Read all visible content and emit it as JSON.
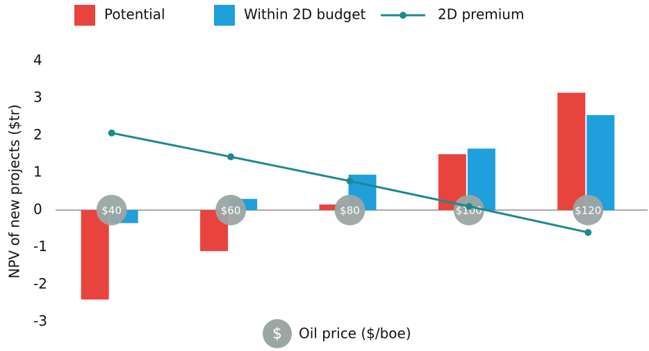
{
  "chart_data": {
    "type": "bar",
    "y_label": "NPV of new projects ($tr)",
    "x_label": "Oil price ($/boe)",
    "x_label_icon": "$",
    "categories": [
      "$40",
      "$60",
      "$80",
      "$100",
      "$120"
    ],
    "series": [
      {
        "name": "Potential",
        "color": "#e8433d",
        "values": [
          -2.4,
          -1.1,
          0.15,
          1.5,
          3.15
        ]
      },
      {
        "name": "Within 2D budget",
        "color": "#1f9fdb",
        "values": [
          -0.35,
          0.3,
          0.95,
          1.65,
          2.55
        ]
      },
      {
        "name": "2D premium",
        "type": "line",
        "color": "#1b8a8c",
        "values": [
          2.07,
          1.43,
          0.78,
          0.1,
          -0.6
        ]
      }
    ],
    "ylim": [
      -3,
      4
    ],
    "yticks": [
      -3,
      -2,
      -1,
      0,
      1,
      2,
      3,
      4
    ],
    "legend": "top"
  }
}
